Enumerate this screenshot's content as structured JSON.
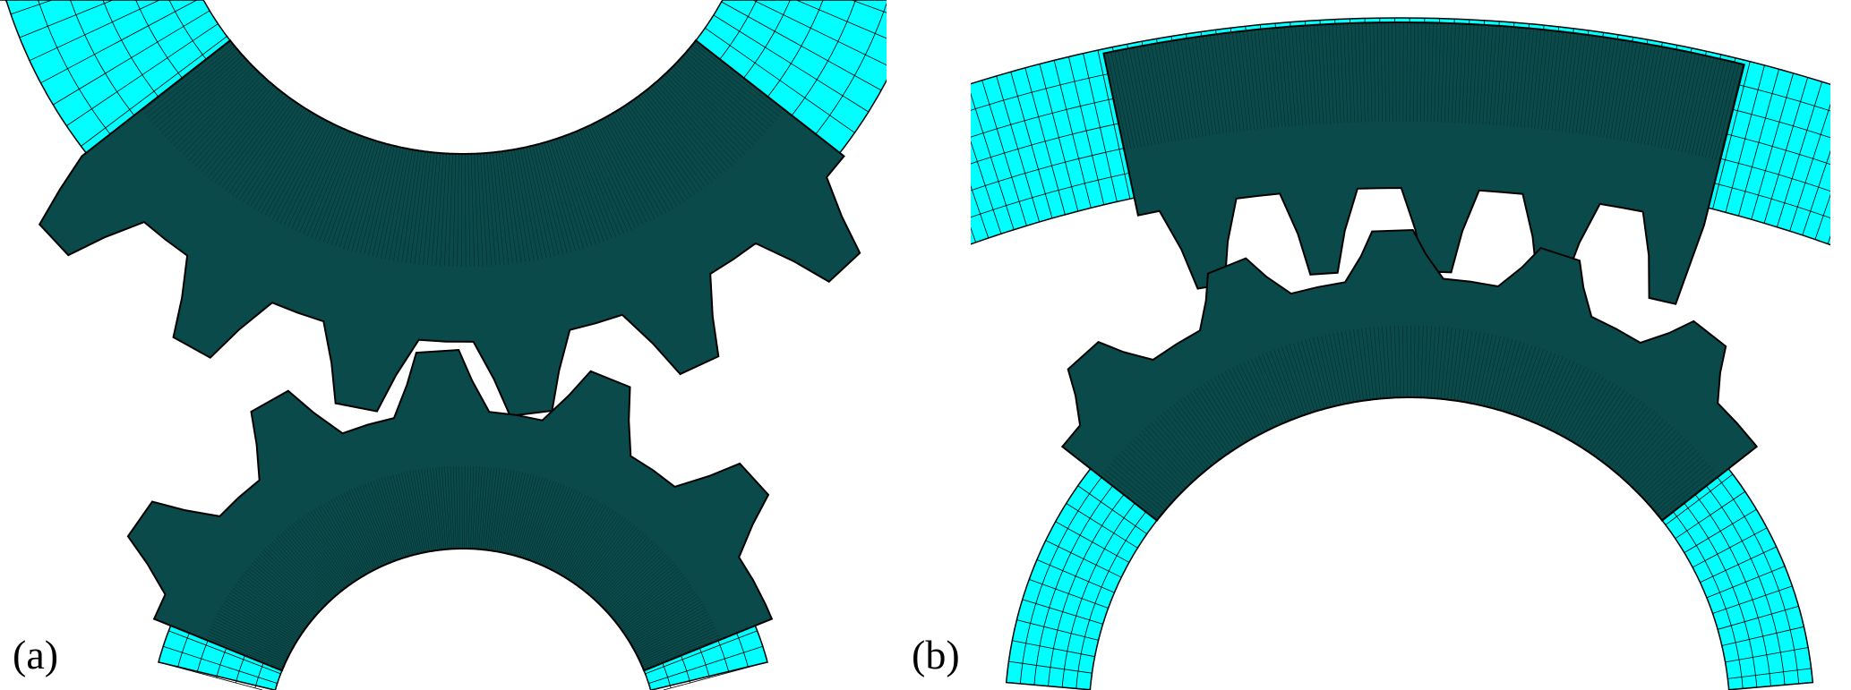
{
  "panels": [
    {
      "label": "(a)"
    },
    {
      "label": "(b)"
    }
  ],
  "colors": {
    "coarse_mesh": "#00ffff",
    "fine_mesh": "#0b4a4a",
    "mesh_lines": "#000000",
    "background": "#ffffff"
  }
}
